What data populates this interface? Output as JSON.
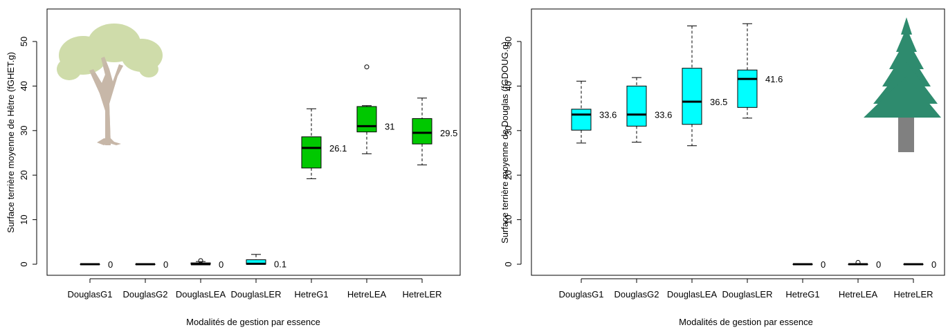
{
  "colors": {
    "hetre_box": "#00c800",
    "douglas_box": "#00ffff",
    "tree_leaves": "#cfdcaa",
    "tree_trunk": "#c7b7a8",
    "conifer_green": "#2e8b6e",
    "conifer_trunk": "#808080"
  },
  "icons": {
    "left_panel": "deciduous-tree-icon",
    "right_panel": "conifer-tree-icon"
  },
  "chart_data": [
    {
      "type": "boxplot",
      "xlabel": "Modalités de gestion par essence",
      "ylabel": "Surface terrière moyenne de Hêtre (fGHET.g)",
      "ylim": [
        0,
        55
      ],
      "yticks": [
        "0",
        "10",
        "20",
        "30",
        "40",
        "50"
      ],
      "categories": [
        "DouglasG1",
        "DouglasG2",
        "DouglasLEA",
        "DouglasLER",
        "HetreG1",
        "HetreLEA",
        "HetreLER"
      ],
      "boxes": [
        {
          "category": "DouglasG1",
          "min": 0,
          "q1": 0,
          "median": 0,
          "q3": 0,
          "max": 0,
          "outliers": [],
          "fill": "douglas",
          "label": "0"
        },
        {
          "category": "DouglasG2",
          "min": 0,
          "q1": 0,
          "median": 0,
          "q3": 0,
          "max": 0,
          "outliers": [],
          "fill": "douglas",
          "label": "0"
        },
        {
          "category": "DouglasLEA",
          "min": 0,
          "q1": 0,
          "median": 0,
          "q3": 0.3,
          "max": 0.6,
          "outliers": [
            0.8
          ],
          "fill": "douglas",
          "label": "0"
        },
        {
          "category": "DouglasLER",
          "min": 0,
          "q1": 0,
          "median": 0.1,
          "q3": 1.0,
          "max": 2.2,
          "outliers": [],
          "fill": "douglas",
          "label": "0.1"
        },
        {
          "category": "HetreG1",
          "min": 19.2,
          "q1": 21.6,
          "median": 26.1,
          "q3": 28.6,
          "max": 34.9,
          "outliers": [],
          "fill": "hetre",
          "label": "26.1"
        },
        {
          "category": "HetreLEA",
          "min": 24.8,
          "q1": 29.7,
          "median": 31.0,
          "q3": 35.4,
          "max": 35.6,
          "outliers": [
            44.3
          ],
          "fill": "hetre",
          "label": "31"
        },
        {
          "category": "HetreLER",
          "min": 22.3,
          "q1": 27.0,
          "median": 29.5,
          "q3": 32.7,
          "max": 37.3,
          "outliers": [],
          "fill": "hetre",
          "label": "29.5"
        }
      ]
    },
    {
      "type": "boxplot",
      "xlabel": "Modalités de gestion par essence",
      "ylabel": "Surface terrière moyenne de Douglas (fGDOUG.g)",
      "ylim": [
        0,
        55
      ],
      "yticks": [
        "0",
        "10",
        "20",
        "30",
        "40",
        "50"
      ],
      "categories": [
        "DouglasG1",
        "DouglasG2",
        "DouglasLEA",
        "DouglasLER",
        "HetreG1",
        "HetreLEA",
        "HetreLER"
      ],
      "boxes": [
        {
          "category": "DouglasG1",
          "min": 27.2,
          "q1": 30.1,
          "median": 33.6,
          "q3": 34.8,
          "max": 41.1,
          "outliers": [],
          "fill": "douglas",
          "label": "33.6"
        },
        {
          "category": "DouglasG2",
          "min": 27.4,
          "q1": 31.0,
          "median": 33.6,
          "q3": 40.0,
          "max": 41.9,
          "outliers": [],
          "fill": "douglas",
          "label": "33.6"
        },
        {
          "category": "DouglasLEA",
          "min": 26.6,
          "q1": 31.4,
          "median": 36.5,
          "q3": 44.0,
          "max": 53.5,
          "outliers": [],
          "fill": "douglas",
          "label": "36.5"
        },
        {
          "category": "DouglasLER",
          "min": 32.8,
          "q1": 35.2,
          "median": 41.6,
          "q3": 43.6,
          "max": 54.0,
          "outliers": [],
          "fill": "douglas",
          "label": "41.6"
        },
        {
          "category": "HetreG1",
          "min": 0,
          "q1": 0,
          "median": 0,
          "q3": 0,
          "max": 0,
          "outliers": [],
          "fill": "hetre",
          "label": "0"
        },
        {
          "category": "HetreLEA",
          "min": 0,
          "q1": 0,
          "median": 0,
          "q3": 0,
          "max": 0,
          "outliers": [
            0.4
          ],
          "fill": "hetre",
          "label": "0"
        },
        {
          "category": "HetreLER",
          "min": 0,
          "q1": 0,
          "median": 0,
          "q3": 0,
          "max": 0,
          "outliers": [],
          "fill": "hetre",
          "label": "0"
        }
      ]
    }
  ]
}
